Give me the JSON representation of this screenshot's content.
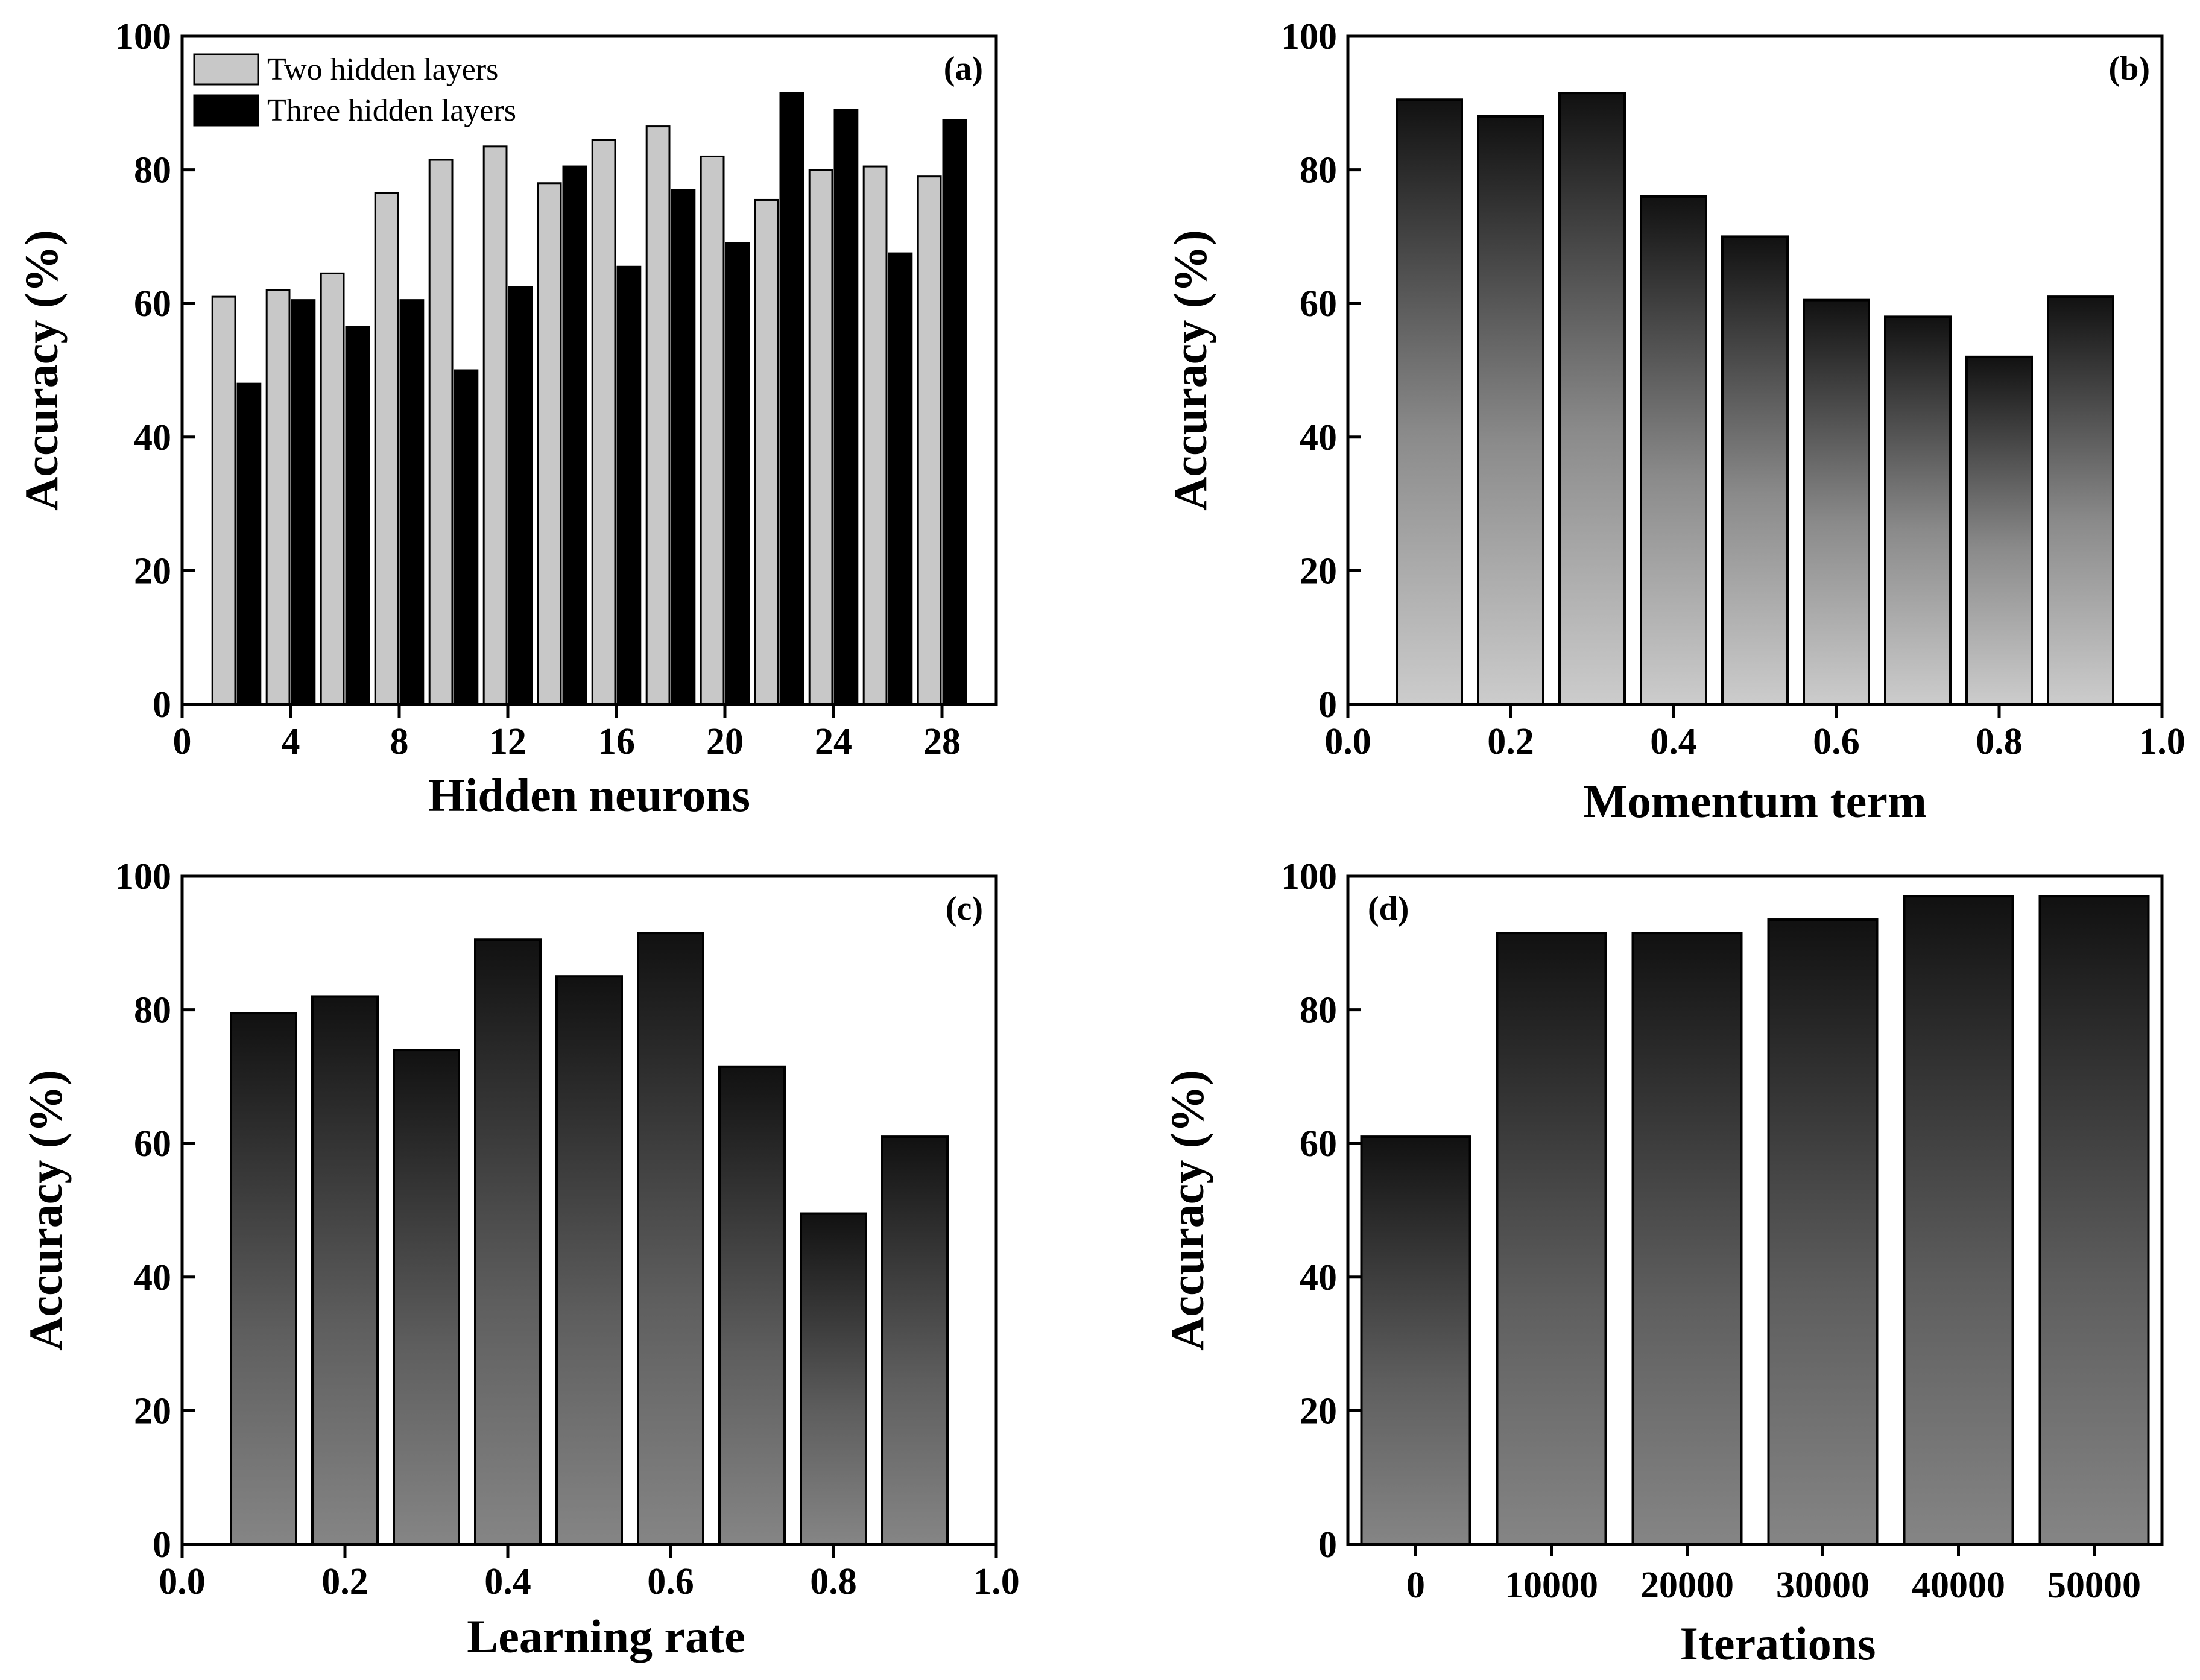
{
  "chart_data": [
    {
      "panel": "(a)",
      "type": "bar",
      "xlabel": "Hidden neurons",
      "ylabel": "Accuracy (%)",
      "xlim": [
        0,
        30
      ],
      "ylim": [
        0,
        100
      ],
      "xticks": [
        0,
        4,
        8,
        12,
        16,
        20,
        24,
        28
      ],
      "yticks": [
        0,
        20,
        40,
        60,
        80,
        100
      ],
      "x": [
        2,
        4,
        6,
        8,
        10,
        12,
        14,
        16,
        18,
        20,
        22,
        24,
        26,
        28
      ],
      "series": [
        {
          "name": "Two hidden layers",
          "fill": "#c8c8c8",
          "values": [
            61,
            62,
            64.5,
            76.5,
            81.5,
            83.5,
            78,
            84.5,
            86.5,
            82,
            75.5,
            80,
            80.5,
            79
          ]
        },
        {
          "name": "Three hidden layers",
          "fill": "#000000",
          "values": [
            48,
            60.5,
            56.5,
            60.5,
            50,
            62.5,
            80.5,
            65.5,
            77,
            69,
            91.5,
            89,
            67.5,
            87.5
          ]
        }
      ],
      "legend_position": "top-left"
    },
    {
      "panel": "(b)",
      "type": "bar",
      "xlabel": "Momentum term",
      "ylabel": "Accuracy (%)",
      "xlim": [
        0,
        1
      ],
      "ylim": [
        0,
        100
      ],
      "xticks": [
        "0.0",
        "0.2",
        "0.4",
        "0.6",
        "0.8",
        "1.0"
      ],
      "yticks": [
        0,
        20,
        40,
        60,
        80,
        100
      ],
      "x": [
        0.1,
        0.2,
        0.3,
        0.4,
        0.5,
        0.6,
        0.7,
        0.8,
        0.9
      ],
      "values": [
        90.5,
        88,
        91.5,
        76,
        70,
        60.5,
        58,
        52,
        61
      ],
      "gradient": [
        "#111111",
        "#cccccc"
      ]
    },
    {
      "panel": "(c)",
      "type": "bar",
      "xlabel": "Learning rate",
      "ylabel": "Accuracy (%)",
      "xlim": [
        0,
        1
      ],
      "ylim": [
        0,
        100
      ],
      "xticks": [
        "0.0",
        "0.2",
        "0.4",
        "0.6",
        "0.8",
        "1.0"
      ],
      "yticks": [
        0,
        20,
        40,
        60,
        80,
        100
      ],
      "x": [
        0.1,
        0.2,
        0.3,
        0.4,
        0.5,
        0.6,
        0.7,
        0.8,
        0.9
      ],
      "values": [
        79.5,
        82,
        74,
        90.5,
        85,
        91.5,
        71.5,
        49.5,
        61
      ],
      "gradient": [
        "#111111",
        "#808080"
      ]
    },
    {
      "panel": "(d)",
      "type": "bar",
      "xlabel": "Iterations",
      "ylabel": "Accuracy (%)",
      "ylim": [
        0,
        100
      ],
      "categories": [
        "0",
        "10000",
        "20000",
        "30000",
        "40000",
        "50000"
      ],
      "yticks": [
        0,
        20,
        40,
        60,
        80,
        100
      ],
      "values": [
        61,
        91.5,
        91.5,
        93.5,
        97,
        97
      ],
      "gradient": [
        "#111111",
        "#808080"
      ]
    }
  ]
}
